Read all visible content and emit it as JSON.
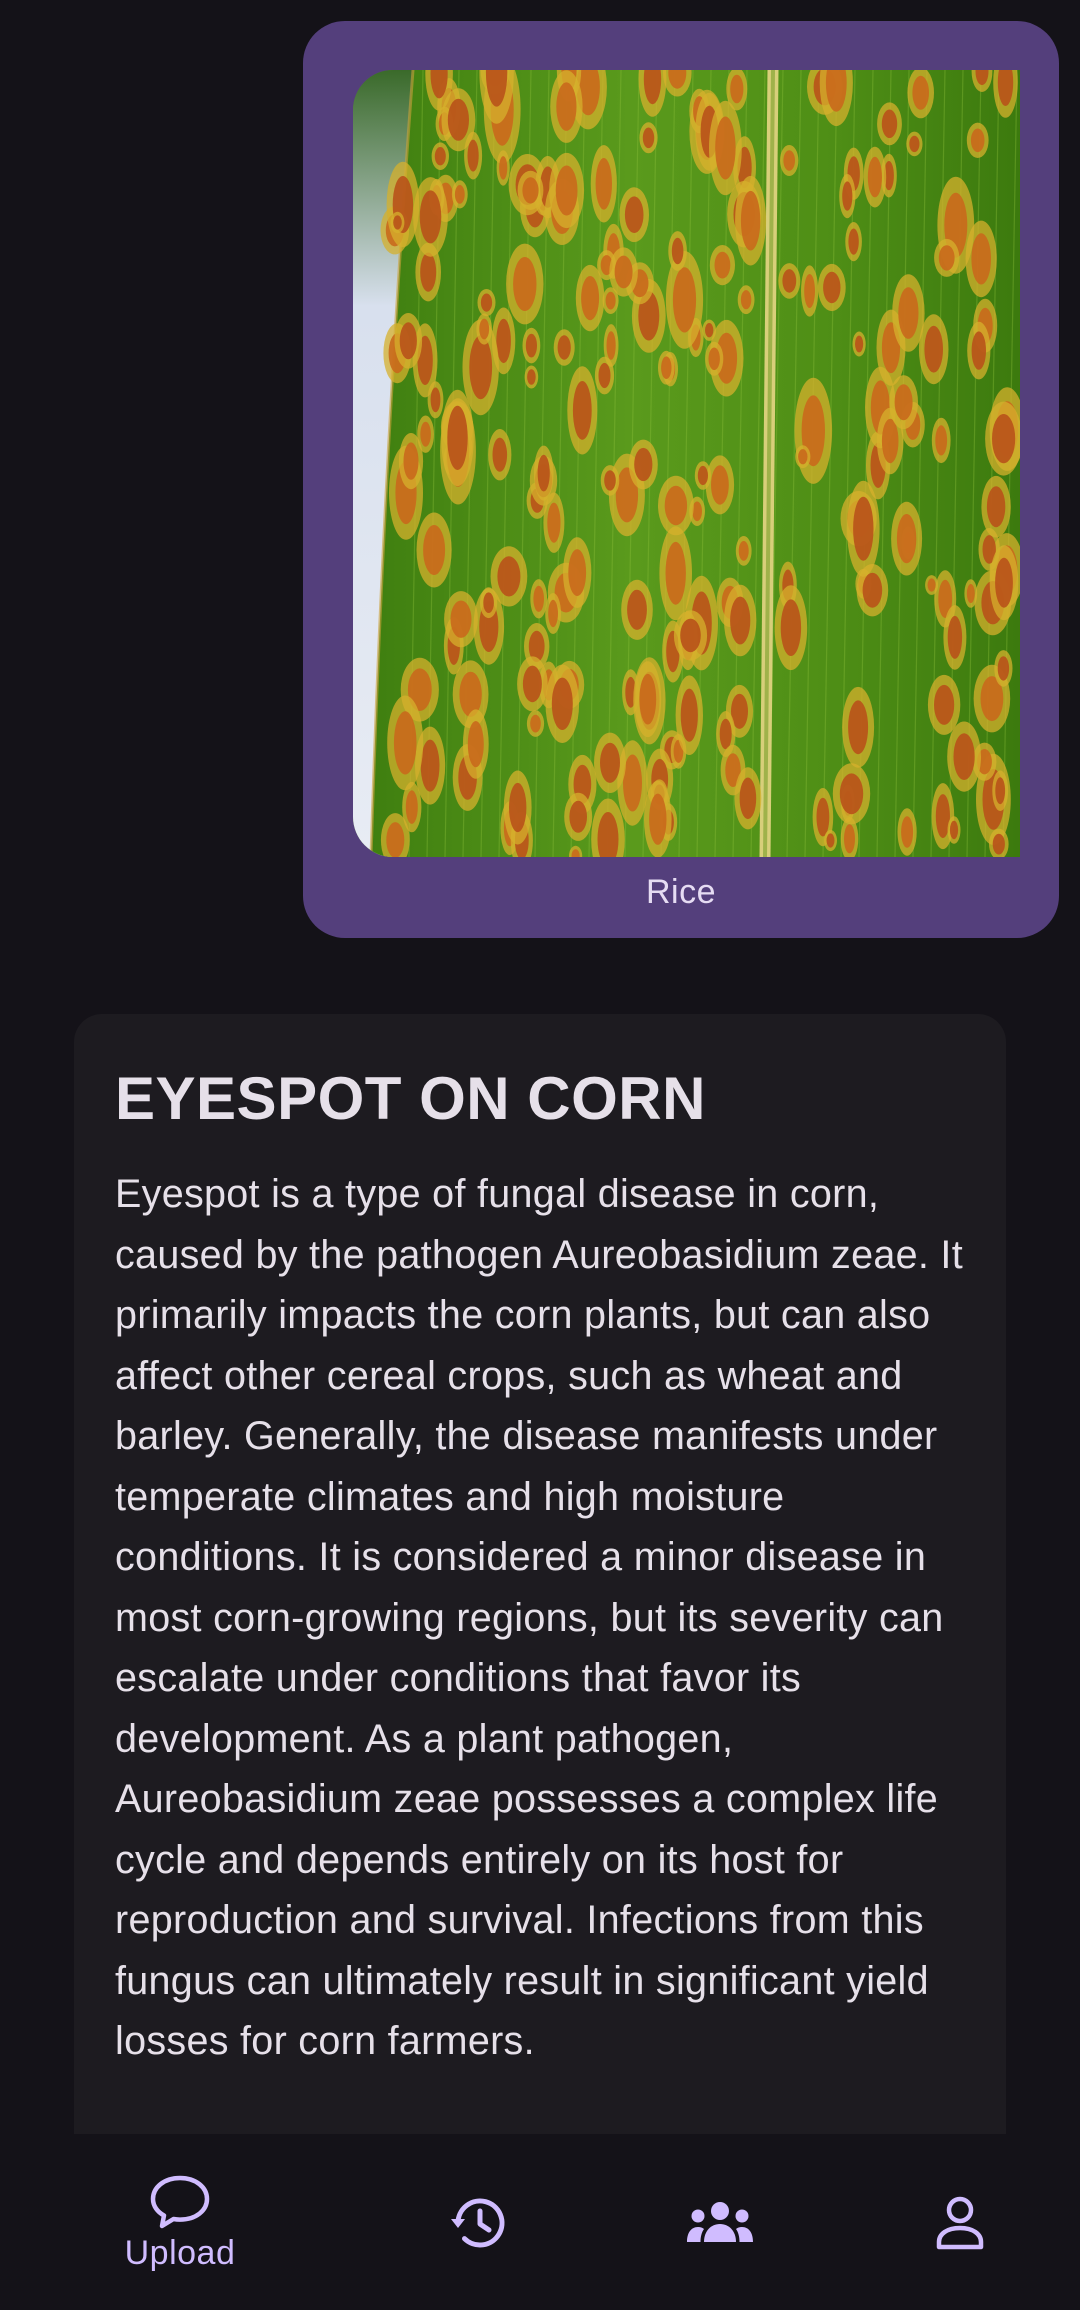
{
  "upload_bubble": {
    "image_alt": "Corn leaf with eyespot lesions",
    "caption": "Rice"
  },
  "result": {
    "title": "EYESPOT ON CORN",
    "description": "Eyespot is a type of fungal disease in corn, caused by the pathogen Aureobasidium zeae. It primarily impacts the corn plants, but can also affect other cereal crops, such as wheat and barley. Generally, the disease manifests under temperate climates and high moisture conditions. It is considered a minor disease in most corn-growing regions, but its severity can escalate under conditions that favor its development. As a plant pathogen, Aureobasidium zeae possesses a complex life cycle and depends entirely on its host for reproduction and survival. Infections from this fungus can ultimately result in significant yield losses for corn farmers."
  },
  "bottom_nav": {
    "items": [
      {
        "icon": "chat-bubble-icon",
        "label": "Upload",
        "active": true
      },
      {
        "icon": "history-icon",
        "label": "",
        "active": false
      },
      {
        "icon": "group-icon",
        "label": "",
        "active": false
      },
      {
        "icon": "person-icon",
        "label": "",
        "active": false
      }
    ]
  },
  "colors": {
    "background": "#141218",
    "bubble": "#543f7c",
    "card": "#1d1b20",
    "text": "#e6e0e9",
    "accent": "#d0bcff"
  }
}
